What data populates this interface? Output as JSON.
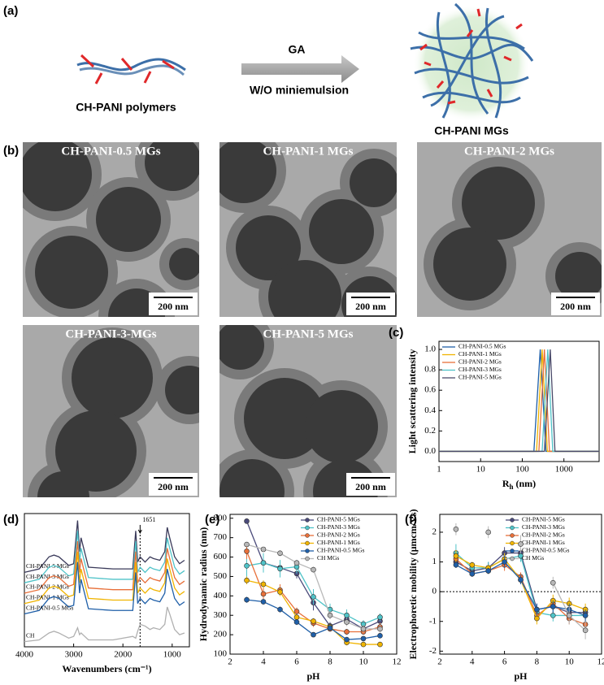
{
  "panel_a": {
    "label": "(a)",
    "left_text": "CH-PANI polymers",
    "arrow_top": "GA",
    "arrow_bottom": "W/O miniemulsion",
    "right_text": "CH-PANI MGs"
  },
  "panel_b": {
    "label": "(b)",
    "images": [
      {
        "title": "CH-PANI-0.5 MGs",
        "scale": "200 nm"
      },
      {
        "title": "CH-PANI-1 MGs",
        "scale": "200 nm"
      },
      {
        "title": "CH-PANI-2 MGs",
        "scale": "200 nm"
      },
      {
        "title": "CH-PANI-3-MGs",
        "scale": "200 nm"
      },
      {
        "title": "CH-PANI-5 MGs",
        "scale": "200 nm"
      }
    ]
  },
  "chart_data": [
    {
      "type": "line",
      "label": "(c)",
      "xlabel": {
        "main": "R",
        "sub": "h",
        "unit": " (nm)"
      },
      "ylabel": "Light scattering intensity",
      "xlog": true,
      "xlim": [
        1,
        7000
      ],
      "ylim": [
        -0.1,
        1.08
      ],
      "xticks": [
        1,
        10,
        100,
        1000
      ],
      "yticks": [
        {
          "value": 0,
          "label": "0.0"
        },
        {
          "value": 0.2,
          "label": "0.2"
        },
        {
          "value": 0.4,
          "label": "0.4"
        },
        {
          "value": 0.6,
          "label": "0.6"
        },
        {
          "value": 0.8,
          "label": "0.8"
        },
        {
          "value": 1,
          "label": "1.0"
        }
      ],
      "legend": "upper left",
      "series": [
        {
          "name": "CH-PANI-0.5 MGs",
          "color": "#1f5fa8",
          "x": [
            1,
            190,
            270,
            370,
            7000
          ],
          "values": [
            0,
            0,
            1,
            0,
            0
          ]
        },
        {
          "name": "CH-PANI-1 MGs",
          "color": "#f0b400",
          "x": [
            1,
            220,
            300,
            400,
            7000
          ],
          "values": [
            0,
            0,
            1,
            0,
            0
          ]
        },
        {
          "name": "CH-PANI-2 MGs",
          "color": "#e8703a",
          "x": [
            1,
            250,
            340,
            450,
            7000
          ],
          "values": [
            0,
            0,
            1,
            0,
            0
          ]
        },
        {
          "name": "CH-PANI-3 MGs",
          "color": "#4fc3c8",
          "x": [
            1,
            300,
            410,
            540,
            7000
          ],
          "values": [
            0,
            0,
            1,
            0,
            0
          ]
        },
        {
          "name": "CH-PANI-5 MGs",
          "color": "#4a4a6a",
          "x": [
            1,
            340,
            470,
            610,
            7000
          ],
          "values": [
            0,
            0,
            1,
            0,
            0
          ]
        }
      ]
    },
    {
      "type": "line",
      "label": "(d)",
      "xlabel": "Wavenumbers (cm⁻¹)",
      "xlim": [
        4000,
        650
      ],
      "ylim": [
        -0.3,
        7.4
      ],
      "xticks": [
        4000,
        3000,
        2000,
        1000
      ],
      "legend": "inline",
      "annotations": [
        {
          "text": "1651",
          "x": 1651
        }
      ],
      "x": [
        4000,
        3700,
        3500,
        3400,
        3300,
        3100,
        3000,
        2920,
        2880,
        2850,
        2700,
        2200,
        1800,
        1740,
        1700,
        1651,
        1550,
        1450,
        1380,
        1250,
        1150,
        1100,
        1050,
        950,
        850,
        750
      ],
      "series": [
        {
          "name": "CH-PANI-5 MGs",
          "color": "#3a3a5a",
          "values": [
            4.0,
            4.2,
            4.9,
            5.0,
            4.9,
            4.4,
            4.5,
            7.0,
            5.2,
            6.0,
            4.3,
            4.2,
            4.2,
            6.4,
            4.6,
            4.9,
            4.6,
            4.9,
            4.8,
            4.7,
            5.2,
            6.6,
            6.0,
            4.9,
            4.5,
            4.7
          ]
        },
        {
          "name": "CH-PANI-3 MGs",
          "color": "#4fc3c8",
          "values": [
            3.4,
            3.6,
            4.3,
            4.4,
            4.3,
            3.8,
            3.9,
            6.4,
            4.6,
            5.4,
            3.7,
            3.6,
            3.6,
            5.8,
            4.0,
            4.3,
            4.0,
            4.3,
            4.2,
            4.1,
            4.6,
            6.0,
            5.4,
            4.3,
            3.9,
            4.1
          ]
        },
        {
          "name": "CH-PANI-2 MGs",
          "color": "#e8703a",
          "values": [
            2.8,
            3.0,
            3.7,
            3.8,
            3.7,
            3.2,
            3.3,
            5.8,
            4.0,
            4.8,
            3.1,
            3.0,
            3.0,
            5.2,
            3.4,
            3.7,
            3.4,
            3.7,
            3.6,
            3.5,
            4.0,
            5.4,
            4.8,
            3.7,
            3.3,
            3.5
          ]
        },
        {
          "name": "CH-PANI-1 MGs",
          "color": "#f0b400",
          "values": [
            2.2,
            2.4,
            3.1,
            3.2,
            3.1,
            2.6,
            2.7,
            5.2,
            3.4,
            4.2,
            2.5,
            2.4,
            2.4,
            4.6,
            2.8,
            3.1,
            2.8,
            3.1,
            3.0,
            2.9,
            3.4,
            4.8,
            4.2,
            3.1,
            2.7,
            2.9
          ]
        },
        {
          "name": "CH-PANI-0.5 MGs",
          "color": "#1f5fa8",
          "values": [
            1.6,
            1.8,
            2.5,
            2.6,
            2.5,
            2.0,
            2.1,
            4.6,
            2.8,
            3.6,
            1.9,
            1.8,
            1.8,
            4.0,
            2.2,
            2.5,
            2.2,
            2.5,
            2.4,
            2.3,
            2.8,
            4.2,
            3.6,
            2.5,
            2.1,
            2.3
          ]
        },
        {
          "name": "CH",
          "color": "#b0b0b0",
          "values": [
            0,
            0.1,
            0.5,
            0.6,
            0.5,
            0.2,
            0.3,
            0.8,
            0.4,
            0.5,
            0.1,
            0.1,
            0.3,
            0.2,
            0.6,
            1.0,
            0.9,
            0.7,
            0.8,
            0.7,
            1.0,
            2.0,
            1.6,
            0.7,
            0.4,
            0.5
          ]
        }
      ]
    },
    {
      "type": "line",
      "label": "(e)",
      "xlabel": "pH",
      "ylabel": "Hydrodynamic radius (nm)",
      "xlim": [
        2,
        12
      ],
      "ylim": [
        100,
        820
      ],
      "xticks": [
        2,
        4,
        6,
        8,
        10,
        12
      ],
      "yticks": [
        100,
        200,
        300,
        400,
        500,
        600,
        700,
        800
      ],
      "legend": "upper right",
      "markers": true,
      "x": [
        3,
        4,
        5,
        6,
        7,
        8,
        9,
        10,
        11
      ],
      "series": [
        {
          "name": "CH-PANI-5 MGs",
          "color": "#4a4a7a",
          "values": [
            785,
            570,
            545,
            515,
            365,
            245,
            280,
            230,
            270
          ],
          "errors": [
            5,
            40,
            30,
            25,
            40,
            20,
            25,
            20,
            25
          ]
        },
        {
          "name": "CH-PANI-3 MGs",
          "color": "#4fc3c8",
          "values": [
            555,
            570,
            540,
            550,
            395,
            330,
            300,
            255,
            290
          ],
          "errors": [
            60,
            50,
            45,
            35,
            40,
            30,
            30,
            20,
            20
          ]
        },
        {
          "name": "CH-PANI-2 MGs",
          "color": "#e8703a",
          "values": [
            630,
            410,
            430,
            320,
            260,
            230,
            215,
            215,
            240
          ],
          "errors": [
            40,
            30,
            30,
            20,
            20,
            15,
            15,
            15,
            20
          ]
        },
        {
          "name": "CH-PANI-1 MGs",
          "color": "#f0b400",
          "values": [
            480,
            460,
            420,
            290,
            270,
            240,
            160,
            150,
            150
          ],
          "errors": [
            20,
            20,
            20,
            15,
            15,
            15,
            15,
            10,
            10
          ]
        },
        {
          "name": "CH-PANI-0.5 MGs",
          "color": "#1f5fa8",
          "values": [
            380,
            370,
            330,
            265,
            200,
            235,
            175,
            180,
            195
          ],
          "errors": [
            15,
            15,
            15,
            15,
            10,
            15,
            10,
            10,
            10
          ]
        },
        {
          "name": "CH MGs",
          "color": "#b8b8b8",
          "values": [
            665,
            640,
            620,
            570,
            535,
            300,
            265,
            230,
            230
          ],
          "errors": [
            10,
            10,
            15,
            15,
            15,
            20,
            20,
            20,
            20
          ]
        }
      ]
    },
    {
      "type": "line",
      "label": "(f)",
      "xlabel": "pH",
      "ylabel": "Electrophoretic mobility (μmcm/Vs)",
      "xlim": [
        2,
        12
      ],
      "ylim": [
        -2.1,
        2.6
      ],
      "xticks": [
        2,
        4,
        6,
        8,
        10,
        12
      ],
      "yticks": [
        -2,
        -1,
        0,
        1,
        2
      ],
      "legend": "upper right",
      "markers": true,
      "ref_line": 0,
      "x": [
        3,
        4,
        5,
        6,
        7,
        8,
        9,
        10,
        11
      ],
      "series": [
        {
          "name": "CH-PANI-5 MGs",
          "color": "#4a4a7a",
          "values": [
            1.0,
            0.7,
            0.8,
            1.3,
            1.3,
            -0.6,
            -0.5,
            -0.7,
            -0.7
          ],
          "errors": [
            0.2,
            0.1,
            0.2,
            0.2,
            0.15,
            0.2,
            0.2,
            0.2,
            0.2
          ]
        },
        {
          "name": "CH-PANI-3 MGs",
          "color": "#4fc3c8",
          "values": [
            1.3,
            0.8,
            0.8,
            1.1,
            1.2,
            -0.7,
            -0.8,
            -0.8,
            -0.8
          ],
          "errors": [
            0.3,
            0.2,
            0.2,
            0.2,
            0.2,
            0.2,
            0.2,
            0.2,
            0.2
          ]
        },
        {
          "name": "CH-PANI-2 MGs",
          "color": "#e8703a",
          "values": [
            1.1,
            0.6,
            0.7,
            0.9,
            0.5,
            -0.8,
            -0.4,
            -0.9,
            -1.1
          ],
          "errors": [
            0.2,
            0.1,
            0.1,
            0.2,
            0.15,
            0.2,
            0.2,
            0.2,
            0.2
          ]
        },
        {
          "name": "CH-PANI-1 MGs",
          "color": "#f0b400",
          "values": [
            1.2,
            0.9,
            0.8,
            1.1,
            0.4,
            -0.9,
            -0.3,
            -0.4,
            -0.6
          ],
          "errors": [
            0.2,
            0.1,
            0.1,
            0.2,
            0.15,
            0.2,
            0.2,
            0.2,
            0.2
          ]
        },
        {
          "name": "CH-PANI-0.5 MGs",
          "color": "#1f5fa8",
          "values": [
            0.9,
            0.6,
            0.7,
            1.0,
            0.4,
            -0.6,
            -0.5,
            -0.6,
            -0.8
          ],
          "errors": [
            0.1,
            0.1,
            0.1,
            0.2,
            0.15,
            0.2,
            0.2,
            0.2,
            0.2
          ]
        },
        {
          "name": "CH MGs",
          "color": "#b8b8b8",
          "values": [
            2.1,
            null,
            2.0,
            null,
            1.6,
            null,
            0.3,
            -0.8,
            -1.3
          ],
          "errors": [
            0.2,
            null,
            0.2,
            null,
            0.3,
            null,
            0.2,
            0.3,
            0.3
          ]
        }
      ]
    }
  ]
}
